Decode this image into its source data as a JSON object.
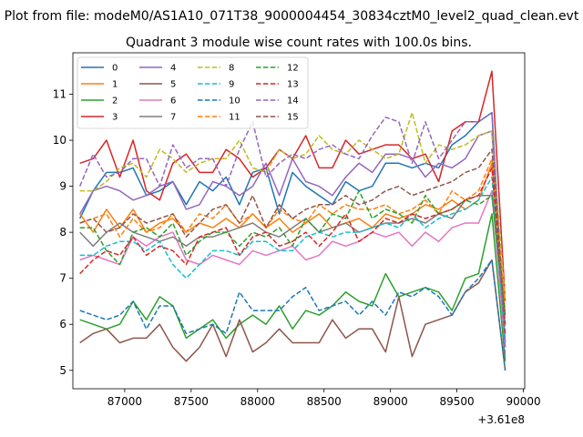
{
  "figure": {
    "suptitle": "Plot from file: modeM0/AS1A10_071T38_9000004454_30834cztM0_level2_quad_clean.evt",
    "offset_label": "+3.61e8"
  },
  "chart_data": {
    "type": "line",
    "title": "Quadrant 3 module wise count rates with 100.0s bins.",
    "xlabel": "",
    "ylabel": "",
    "xlim": [
      86610,
      90010
    ],
    "ylim": [
      4.6,
      11.9
    ],
    "xticks": [
      87000,
      87500,
      88000,
      88500,
      89000,
      89500,
      90000
    ],
    "xtick_labels": [
      "87000",
      "87500",
      "88000",
      "88500",
      "89000",
      "89500",
      "90000"
    ],
    "yticks": [
      5,
      6,
      7,
      8,
      9,
      10,
      11
    ],
    "ytick_labels": [
      "5",
      "6",
      "7",
      "8",
      "9",
      "10",
      "11"
    ],
    "grid": false,
    "legend": "top-left, 4 columns",
    "x": [
      86663,
      86763,
      86863,
      86963,
      87063,
      87163,
      87263,
      87363,
      87463,
      87563,
      87663,
      87763,
      87863,
      87963,
      88063,
      88163,
      88263,
      88363,
      88463,
      88563,
      88663,
      88763,
      88863,
      88963,
      89063,
      89163,
      89263,
      89363,
      89463,
      89563,
      89663,
      89763,
      89863
    ],
    "series": [
      {
        "name": "0",
        "color": "#1f77b4",
        "dash": "solid",
        "values": [
          8.3,
          8.9,
          9.3,
          9.3,
          9.4,
          8.8,
          8.9,
          9.1,
          8.6,
          9.1,
          8.9,
          9.2,
          8.6,
          9.3,
          9.4,
          8.4,
          9.3,
          9.0,
          8.8,
          8.6,
          9.1,
          8.9,
          9.0,
          9.5,
          9.5,
          9.4,
          9.5,
          9.4,
          9.9,
          10.1,
          10.4,
          10.6,
          5.6
        ]
      },
      {
        "name": "1",
        "color": "#ff7f0e",
        "dash": "solid",
        "values": [
          8.4,
          8.0,
          8.5,
          8.1,
          8.5,
          8.0,
          8.2,
          8.3,
          8.0,
          8.2,
          8.1,
          8.3,
          8.1,
          8.4,
          8.1,
          8.3,
          8.0,
          8.2,
          8.4,
          8.1,
          8.2,
          8.3,
          8.1,
          8.4,
          8.3,
          8.4,
          8.6,
          8.5,
          8.7,
          8.5,
          8.7,
          9.5,
          6.2
        ]
      },
      {
        "name": "2",
        "color": "#2ca02c",
        "dash": "solid",
        "values": [
          6.1,
          6.0,
          5.9,
          6.0,
          6.5,
          6.1,
          6.6,
          6.4,
          5.7,
          5.9,
          6.1,
          5.7,
          6.0,
          6.2,
          6.0,
          6.4,
          5.9,
          6.3,
          6.2,
          6.4,
          6.7,
          6.5,
          6.4,
          7.1,
          6.6,
          6.7,
          6.8,
          6.7,
          6.3,
          7.0,
          7.1,
          8.4,
          5.2
        ]
      },
      {
        "name": "3",
        "color": "#d62728",
        "dash": "solid",
        "values": [
          9.5,
          9.6,
          10.0,
          9.2,
          10.0,
          8.9,
          8.7,
          9.5,
          9.7,
          9.3,
          9.3,
          9.8,
          9.6,
          9.2,
          9.4,
          9.8,
          9.6,
          10.1,
          9.4,
          9.4,
          10.0,
          9.7,
          9.8,
          9.9,
          9.9,
          9.6,
          9.7,
          9.1,
          10.2,
          10.4,
          10.4,
          11.5,
          6.5
        ]
      },
      {
        "name": "4",
        "color": "#9467bd",
        "dash": "solid",
        "values": [
          8.4,
          8.9,
          9.0,
          8.9,
          8.7,
          8.8,
          9.0,
          9.1,
          8.5,
          8.6,
          9.1,
          9.0,
          8.8,
          9.0,
          9.5,
          8.8,
          9.6,
          9.1,
          9.0,
          8.8,
          9.2,
          9.5,
          9.3,
          9.7,
          9.7,
          9.6,
          9.2,
          9.5,
          9.4,
          9.6,
          10.1,
          10.2,
          5.5
        ]
      },
      {
        "name": "5",
        "color": "#8c564b",
        "dash": "solid",
        "values": [
          5.6,
          5.8,
          5.9,
          5.6,
          5.7,
          5.7,
          6.0,
          5.5,
          5.2,
          5.5,
          6.0,
          5.3,
          6.1,
          5.4,
          5.6,
          5.9,
          5.6,
          5.6,
          5.6,
          6.1,
          5.7,
          5.9,
          5.9,
          5.4,
          6.6,
          5.3,
          6.0,
          6.1,
          6.2,
          6.7,
          6.9,
          7.4,
          5.0
        ]
      },
      {
        "name": "6",
        "color": "#e377c2",
        "dash": "solid",
        "values": [
          7.4,
          7.5,
          7.4,
          7.3,
          7.9,
          7.7,
          7.9,
          8.0,
          7.4,
          7.3,
          7.5,
          7.4,
          7.3,
          7.6,
          7.5,
          7.6,
          7.7,
          7.4,
          7.5,
          7.8,
          7.7,
          7.8,
          8.0,
          7.9,
          8.0,
          7.7,
          8.0,
          7.8,
          8.1,
          8.2,
          8.2,
          8.9,
          5.5
        ]
      },
      {
        "name": "7",
        "color": "#7f7f7f",
        "dash": "solid",
        "values": [
          8.0,
          7.7,
          8.0,
          8.2,
          8.0,
          7.9,
          7.8,
          7.9,
          7.7,
          7.9,
          7.9,
          8.0,
          8.1,
          8.2,
          8.0,
          7.9,
          8.1,
          8.3,
          8.0,
          8.1,
          8.2,
          8.0,
          8.1,
          8.2,
          8.2,
          8.3,
          8.2,
          8.4,
          8.3,
          8.7,
          8.8,
          8.8,
          6.0
        ]
      },
      {
        "name": "8",
        "color": "#bcbd22",
        "dash": "dashed",
        "values": [
          8.9,
          8.9,
          9.1,
          9.4,
          9.5,
          9.2,
          9.8,
          9.6,
          9.3,
          9.5,
          9.6,
          9.6,
          10.0,
          9.4,
          9.3,
          9.8,
          9.6,
          9.7,
          10.1,
          9.8,
          9.7,
          10.0,
          9.8,
          9.6,
          9.7,
          10.6,
          9.5,
          9.9,
          9.8,
          9.9,
          10.1,
          10.2,
          6.5
        ]
      },
      {
        "name": "9",
        "color": "#17becf",
        "dash": "dashed",
        "values": [
          7.5,
          7.5,
          7.7,
          7.8,
          7.8,
          7.6,
          7.8,
          7.3,
          7.0,
          7.3,
          7.6,
          7.6,
          7.5,
          7.8,
          7.8,
          7.6,
          7.6,
          7.9,
          8.0,
          7.9,
          8.0,
          8.0,
          8.1,
          8.2,
          8.1,
          8.4,
          8.1,
          8.3,
          8.4,
          8.5,
          8.7,
          9.2,
          5.6
        ]
      },
      {
        "name": "10",
        "color": "#1f77b4",
        "dash": "dashed",
        "values": [
          6.3,
          6.2,
          6.1,
          6.2,
          6.5,
          5.9,
          6.4,
          6.4,
          5.8,
          5.9,
          6.0,
          5.8,
          6.7,
          6.3,
          6.3,
          6.3,
          6.6,
          6.8,
          6.3,
          6.4,
          6.5,
          6.2,
          6.5,
          6.2,
          6.7,
          6.6,
          6.8,
          6.6,
          6.2,
          6.7,
          7.0,
          7.4,
          5.0
        ]
      },
      {
        "name": "11",
        "color": "#ff7f0e",
        "dash": "dashed",
        "values": [
          8.2,
          8.3,
          8.4,
          7.9,
          8.3,
          8.0,
          8.1,
          8.4,
          8.0,
          8.4,
          8.3,
          8.6,
          8.2,
          8.4,
          8.1,
          8.5,
          8.3,
          8.2,
          8.6,
          8.4,
          8.6,
          8.5,
          8.5,
          8.6,
          8.4,
          8.5,
          8.7,
          8.4,
          8.9,
          8.7,
          8.9,
          9.6,
          6.3
        ]
      },
      {
        "name": "12",
        "color": "#2ca02c",
        "dash": "dashed",
        "values": [
          8.1,
          8.1,
          7.6,
          7.3,
          8.0,
          8.1,
          7.9,
          8.2,
          7.5,
          7.8,
          8.0,
          8.0,
          7.7,
          8.0,
          7.9,
          8.1,
          7.7,
          8.3,
          8.0,
          8.4,
          8.3,
          8.9,
          8.3,
          8.5,
          8.4,
          8.2,
          8.8,
          8.4,
          8.5,
          8.7,
          8.6,
          8.8,
          6.2
        ]
      },
      {
        "name": "13",
        "color": "#d62728",
        "dash": "dashed",
        "values": [
          7.1,
          7.4,
          7.6,
          7.5,
          7.9,
          7.5,
          7.7,
          7.6,
          7.3,
          7.9,
          8.0,
          8.1,
          7.5,
          7.9,
          8.0,
          7.7,
          7.8,
          8.0,
          7.7,
          8.0,
          8.4,
          7.8,
          8.0,
          8.3,
          8.2,
          8.4,
          8.3,
          8.4,
          8.5,
          8.7,
          8.8,
          9.4,
          5.8
        ]
      },
      {
        "name": "14",
        "color": "#9467bd",
        "dash": "dashed",
        "values": [
          9.0,
          9.7,
          9.2,
          9.3,
          9.6,
          9.6,
          9.0,
          9.9,
          9.4,
          9.6,
          9.6,
          9.0,
          9.8,
          10.4,
          9.2,
          9.5,
          9.7,
          9.6,
          9.8,
          9.9,
          9.7,
          9.6,
          10.1,
          10.5,
          10.4,
          9.5,
          10.4,
          9.6,
          10.0,
          10.4,
          10.4,
          10.6,
          5.3
        ]
      },
      {
        "name": "15",
        "color": "#8c564b",
        "dash": "dashed",
        "values": [
          8.2,
          8.3,
          8.0,
          8.1,
          8.4,
          8.2,
          8.3,
          8.4,
          7.9,
          8.2,
          8.5,
          8.6,
          8.2,
          8.8,
          8.1,
          8.6,
          8.3,
          8.5,
          8.6,
          8.6,
          8.8,
          8.6,
          8.7,
          8.9,
          9.0,
          8.8,
          8.9,
          9.0,
          9.1,
          9.3,
          9.4,
          9.8,
          6.0
        ]
      }
    ]
  }
}
